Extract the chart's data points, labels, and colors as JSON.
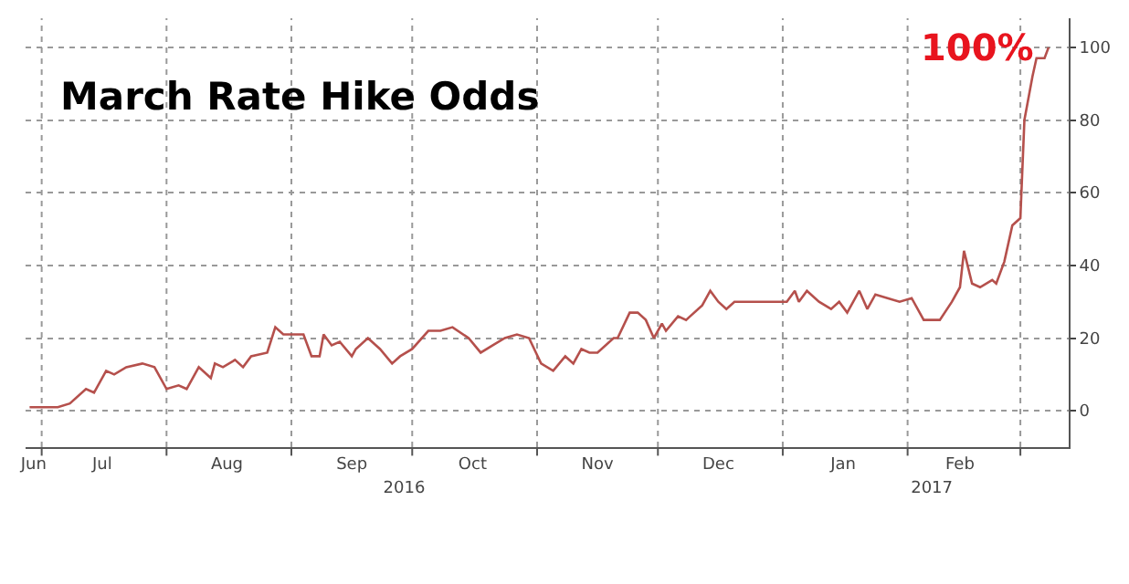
{
  "chart_data": {
    "type": "line",
    "title": "March Rate Hike Odds",
    "x": [
      "2016-06-28",
      "2016-07-02",
      "2016-07-05",
      "2016-07-08",
      "2016-07-12",
      "2016-07-14",
      "2016-07-17",
      "2016-07-19",
      "2016-07-22",
      "2016-07-26",
      "2016-07-29",
      "2016-08-01",
      "2016-08-04",
      "2016-08-06",
      "2016-08-09",
      "2016-08-12",
      "2016-08-13",
      "2016-08-15",
      "2016-08-18",
      "2016-08-20",
      "2016-08-22",
      "2016-08-26",
      "2016-08-28",
      "2016-08-30",
      "2016-09-01",
      "2016-09-04",
      "2016-09-06",
      "2016-09-08",
      "2016-09-09",
      "2016-09-11",
      "2016-09-13",
      "2016-09-16",
      "2016-09-17",
      "2016-09-20",
      "2016-09-23",
      "2016-09-26",
      "2016-09-28",
      "2016-10-01",
      "2016-10-05",
      "2016-10-08",
      "2016-10-11",
      "2016-10-15",
      "2016-10-18",
      "2016-10-21",
      "2016-10-24",
      "2016-10-27",
      "2016-10-30",
      "2016-11-02",
      "2016-11-05",
      "2016-11-08",
      "2016-11-10",
      "2016-11-12",
      "2016-11-14",
      "2016-11-16",
      "2016-11-20",
      "2016-11-21",
      "2016-11-24",
      "2016-11-26",
      "2016-11-28",
      "2016-11-30",
      "2016-12-02",
      "2016-12-03",
      "2016-12-06",
      "2016-12-08",
      "2016-12-09",
      "2016-12-12",
      "2016-12-14",
      "2016-12-16",
      "2016-12-18",
      "2016-12-20",
      "2016-12-25",
      "2017-01-02",
      "2017-01-04",
      "2017-01-05",
      "2017-01-07",
      "2017-01-10",
      "2017-01-13",
      "2017-01-15",
      "2017-01-17",
      "2017-01-20",
      "2017-01-22",
      "2017-01-24",
      "2017-01-27",
      "2017-01-30",
      "2017-02-02",
      "2017-02-05",
      "2017-02-09",
      "2017-02-12",
      "2017-02-14",
      "2017-02-15",
      "2017-02-17",
      "2017-02-19",
      "2017-02-22",
      "2017-02-23",
      "2017-02-25",
      "2017-02-27",
      "2017-03-01",
      "2017-03-02",
      "2017-03-04",
      "2017-03-05",
      "2017-03-07",
      "2017-03-08"
    ],
    "series": [
      {
        "color": "#b5504c",
        "values": [
          1,
          1,
          1,
          2,
          6,
          5,
          11,
          10,
          12,
          13,
          12,
          6,
          7,
          6,
          12,
          9,
          13,
          12,
          14,
          12,
          15,
          16,
          23,
          21,
          21,
          21,
          15,
          15,
          21,
          18,
          19,
          15,
          17,
          20,
          17,
          13,
          15,
          17,
          22,
          22,
          23,
          20,
          16,
          18,
          20,
          21,
          20,
          13,
          11,
          15,
          13,
          17,
          16,
          16,
          20,
          20,
          27,
          27,
          25,
          20,
          24,
          22,
          26,
          25,
          26,
          29,
          33,
          30,
          28,
          30,
          30,
          30,
          33,
          30,
          33,
          30,
          28,
          30,
          27,
          33,
          28,
          32,
          31,
          30,
          31,
          25,
          25,
          30,
          34,
          44,
          35,
          34,
          36,
          35,
          41,
          51,
          53,
          80,
          92,
          97,
          97,
          100
        ]
      }
    ],
    "annotations": [
      {
        "text": "100%",
        "x": "2017-03-08",
        "y": 100
      }
    ],
    "xlim": [
      "2016-06-27",
      "2017-03-13"
    ],
    "xticks": [
      {
        "value": "2016-06-29",
        "label": "Jun"
      },
      {
        "value": "2016-07-01",
        "label": null
      },
      {
        "value": "2016-07-16",
        "label": "Jul"
      },
      {
        "value": "2016-08-01",
        "label": null
      },
      {
        "value": "2016-08-16",
        "label": "Aug"
      },
      {
        "value": "2016-09-01",
        "label": null
      },
      {
        "value": "2016-09-16",
        "label": "Sep"
      },
      {
        "value": "2016-10-01",
        "label": null
      },
      {
        "value": "2016-10-16",
        "label": "Oct"
      },
      {
        "value": "2016-11-01",
        "label": null
      },
      {
        "value": "2016-11-16",
        "label": "Nov"
      },
      {
        "value": "2016-12-01",
        "label": null
      },
      {
        "value": "2016-12-16",
        "label": "Dec"
      },
      {
        "value": "2017-01-01",
        "label": null
      },
      {
        "value": "2017-01-16",
        "label": "Jan"
      },
      {
        "value": "2017-02-01",
        "label": null
      },
      {
        "value": "2017-02-14",
        "label": "Feb"
      },
      {
        "value": "2017-03-01",
        "label": null
      }
    ],
    "x2lim": [
      "2016-06-27",
      "2017-03-13"
    ],
    "x2ticks": [
      {
        "value": "2016-09-29",
        "label": "2016"
      },
      {
        "value": "2017-02-07",
        "label": "2017"
      }
    ],
    "ylim": [
      -10,
      108
    ],
    "yticks": [
      0,
      20,
      40,
      60,
      80,
      100
    ],
    "grid": true,
    "marker": "none",
    "line_style": "solid"
  }
}
